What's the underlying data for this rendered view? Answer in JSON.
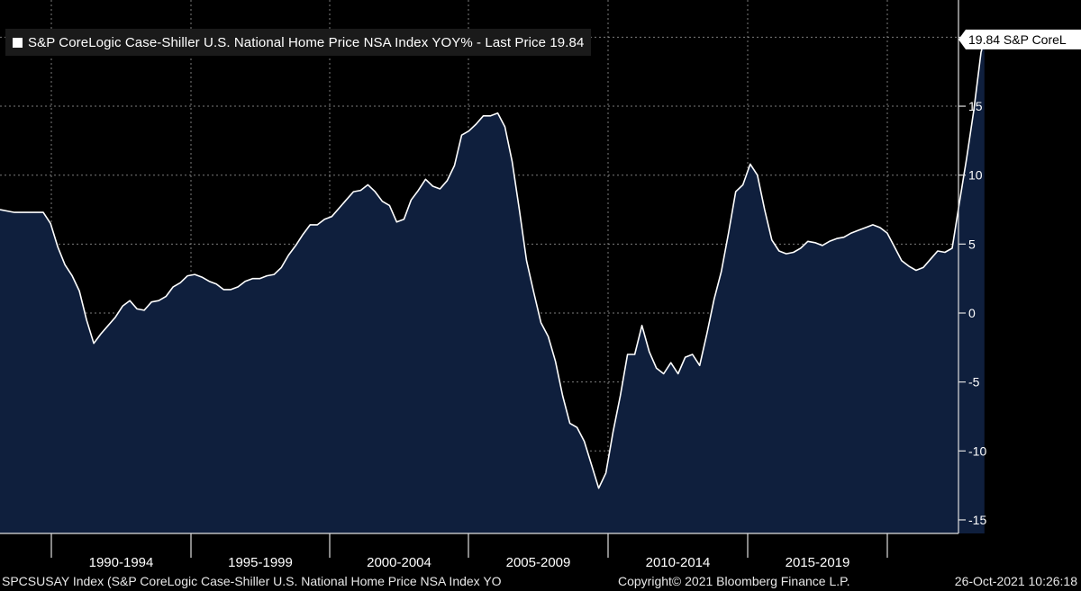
{
  "chart_data": {
    "type": "area",
    "legend": {
      "text": "S&P CoreLogic Case-Shiller U.S. National Home Price NSA Index YOY% - Last Price 19.84",
      "placement": "top-left"
    },
    "last_value_label": "19.84 S&P CoreL",
    "last_value": 19.84,
    "x_tick_labels": [
      "1990-1994",
      "1995-1999",
      "2000-2004",
      "2005-2009",
      "2010-2014",
      "2015-2019"
    ],
    "y_ticks": [
      15,
      10,
      5,
      0,
      -5,
      -10,
      -15
    ],
    "y_tick_labels": [
      "15",
      "10",
      "5",
      "0",
      "-5",
      "-10",
      "-15"
    ],
    "ylim": [
      -16,
      22
    ],
    "xlim": [
      1987.5,
      2022.0
    ],
    "grid": true,
    "series": [
      {
        "color": "#ffffff",
        "fill": "#0f1f3d",
        "points": [
          [
            1987.5,
            7.5
          ],
          [
            1988.0,
            7.3
          ],
          [
            1988.5,
            7.3
          ],
          [
            1989.0,
            7.3
          ],
          [
            1989.25,
            6.5
          ],
          [
            1989.5,
            4.8
          ],
          [
            1989.75,
            3.5
          ],
          [
            1990.0,
            2.7
          ],
          [
            1990.25,
            1.6
          ],
          [
            1990.5,
            -0.5
          ],
          [
            1990.75,
            -2.2
          ],
          [
            1991.0,
            -1.5
          ],
          [
            1991.25,
            -0.9
          ],
          [
            1991.5,
            -0.3
          ],
          [
            1991.75,
            0.5
          ],
          [
            1992.0,
            0.9
          ],
          [
            1992.25,
            0.3
          ],
          [
            1992.5,
            0.2
          ],
          [
            1992.75,
            0.8
          ],
          [
            1993.0,
            0.9
          ],
          [
            1993.25,
            1.2
          ],
          [
            1993.5,
            1.9
          ],
          [
            1993.75,
            2.2
          ],
          [
            1994.0,
            2.7
          ],
          [
            1994.25,
            2.8
          ],
          [
            1994.5,
            2.6
          ],
          [
            1994.75,
            2.3
          ],
          [
            1995.0,
            2.1
          ],
          [
            1995.25,
            1.7
          ],
          [
            1995.5,
            1.7
          ],
          [
            1995.75,
            1.9
          ],
          [
            1996.0,
            2.3
          ],
          [
            1996.25,
            2.5
          ],
          [
            1996.5,
            2.5
          ],
          [
            1996.75,
            2.7
          ],
          [
            1997.0,
            2.8
          ],
          [
            1997.25,
            3.3
          ],
          [
            1997.5,
            4.2
          ],
          [
            1997.75,
            4.9
          ],
          [
            1998.0,
            5.7
          ],
          [
            1998.25,
            6.4
          ],
          [
            1998.5,
            6.4
          ],
          [
            1998.75,
            6.8
          ],
          [
            1999.0,
            7.0
          ],
          [
            1999.25,
            7.6
          ],
          [
            1999.5,
            8.2
          ],
          [
            1999.75,
            8.8
          ],
          [
            2000.0,
            8.9
          ],
          [
            2000.25,
            9.3
          ],
          [
            2000.5,
            8.8
          ],
          [
            2000.75,
            8.1
          ],
          [
            2001.0,
            7.8
          ],
          [
            2001.25,
            6.6
          ],
          [
            2001.5,
            6.8
          ],
          [
            2001.75,
            8.2
          ],
          [
            2002.0,
            8.9
          ],
          [
            2002.25,
            9.7
          ],
          [
            2002.5,
            9.2
          ],
          [
            2002.75,
            9.0
          ],
          [
            2003.0,
            9.6
          ],
          [
            2003.25,
            10.7
          ],
          [
            2003.5,
            12.9
          ],
          [
            2003.75,
            13.2
          ],
          [
            2004.0,
            13.7
          ],
          [
            2004.25,
            14.3
          ],
          [
            2004.5,
            14.3
          ],
          [
            2004.75,
            14.5
          ],
          [
            2005.0,
            13.5
          ],
          [
            2005.25,
            11.0
          ],
          [
            2005.5,
            7.5
          ],
          [
            2005.75,
            3.8
          ],
          [
            2006.0,
            1.5
          ],
          [
            2006.25,
            -0.7
          ],
          [
            2006.5,
            -1.7
          ],
          [
            2006.75,
            -3.5
          ],
          [
            2007.0,
            -6.0
          ],
          [
            2007.25,
            -8.0
          ],
          [
            2007.5,
            -8.3
          ],
          [
            2007.75,
            -9.3
          ],
          [
            2008.0,
            -11.0
          ],
          [
            2008.25,
            -12.7
          ],
          [
            2008.5,
            -11.6
          ],
          [
            2008.75,
            -8.6
          ],
          [
            2009.0,
            -6.0
          ],
          [
            2009.25,
            -3.0
          ],
          [
            2009.5,
            -3.0
          ],
          [
            2009.75,
            -0.9
          ],
          [
            2010.0,
            -2.8
          ],
          [
            2010.25,
            -4.0
          ],
          [
            2010.5,
            -4.4
          ],
          [
            2010.75,
            -3.6
          ],
          [
            2011.0,
            -4.4
          ],
          [
            2011.25,
            -3.2
          ],
          [
            2011.5,
            -3.0
          ],
          [
            2011.75,
            -3.8
          ],
          [
            2012.0,
            -1.5
          ],
          [
            2012.25,
            1.0
          ],
          [
            2012.5,
            3.0
          ],
          [
            2012.75,
            5.8
          ],
          [
            2013.0,
            8.8
          ],
          [
            2013.25,
            9.3
          ],
          [
            2013.5,
            10.8
          ],
          [
            2013.75,
            10.0
          ],
          [
            2014.0,
            7.5
          ],
          [
            2014.25,
            5.3
          ],
          [
            2014.5,
            4.5
          ],
          [
            2014.75,
            4.3
          ],
          [
            2015.0,
            4.4
          ],
          [
            2015.25,
            4.7
          ],
          [
            2015.5,
            5.2
          ],
          [
            2015.75,
            5.1
          ],
          [
            2016.0,
            4.9
          ],
          [
            2016.25,
            5.2
          ],
          [
            2016.5,
            5.4
          ],
          [
            2016.75,
            5.5
          ],
          [
            2017.0,
            5.8
          ],
          [
            2017.25,
            6.0
          ],
          [
            2017.5,
            6.2
          ],
          [
            2017.75,
            6.4
          ],
          [
            2018.0,
            6.2
          ],
          [
            2018.25,
            5.8
          ],
          [
            2018.5,
            4.8
          ],
          [
            2018.75,
            3.8
          ],
          [
            2019.0,
            3.4
          ],
          [
            2019.25,
            3.1
          ],
          [
            2019.5,
            3.3
          ],
          [
            2019.75,
            3.9
          ],
          [
            2020.0,
            4.5
          ],
          [
            2020.25,
            4.4
          ],
          [
            2020.5,
            4.7
          ],
          [
            2020.75,
            8.0
          ],
          [
            2021.0,
            11.2
          ],
          [
            2021.25,
            14.7
          ],
          [
            2021.5,
            18.9
          ],
          [
            2021.62,
            19.84
          ]
        ]
      }
    ]
  },
  "footer": {
    "left": "SPCSUSAY Index (S&P CoreLogic Case-Shiller U.S. National Home Price NSA Index YO",
    "copyright": "Copyright© 2021 Bloomberg Finance L.P.",
    "timestamp": "26-Oct-2021 10:26:18"
  },
  "colors": {
    "background": "#000000",
    "area_fill": "#0f1f3d",
    "line": "#ffffff",
    "grid": "#9a9a9a",
    "axis_text": "#ffffff"
  }
}
